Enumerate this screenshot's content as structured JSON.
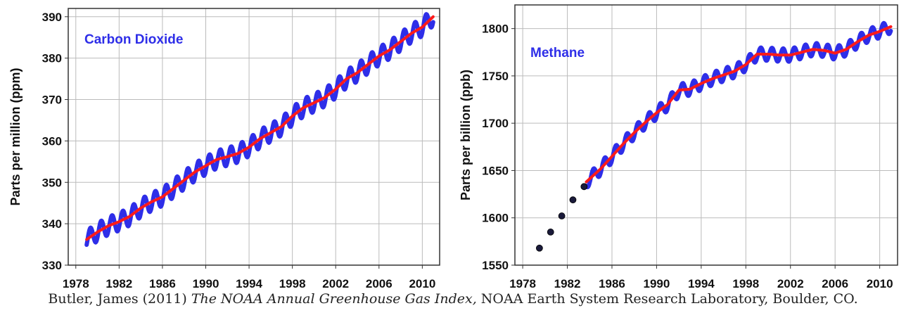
{
  "caption": {
    "author": "Butler, James (2011)",
    "title": "The NOAA Annual Greenhouse Gas Index,",
    "publisher": "NOAA Earth System Research Laboratory, Boulder, CO."
  },
  "colors": {
    "monthly": "#2e2ee8",
    "trend": "#ff1a1a",
    "early_points": "#1a1a3a",
    "grid": "#bbbbbb"
  },
  "chart_data": [
    {
      "type": "line",
      "title": "Carbon Dioxide",
      "xlabel": "",
      "ylabel": "Parts per million (ppm)",
      "xlim": [
        1977.3,
        2011.6
      ],
      "ylim": [
        330,
        392
      ],
      "x_ticks": [
        1978,
        1982,
        1986,
        1990,
        1994,
        1998,
        2002,
        2006,
        2010
      ],
      "y_ticks": [
        330,
        340,
        350,
        360,
        370,
        380,
        390
      ],
      "grid": true,
      "seasonal_amplitude": 2.2,
      "series": [
        {
          "role": "trend",
          "x": [
            1979,
            1980,
            1981,
            1982,
            1983,
            1984,
            1985,
            1986,
            1987,
            1988,
            1989,
            1990,
            1991,
            1992,
            1993,
            1994,
            1995,
            1996,
            1997,
            1998,
            1999,
            2000,
            2001,
            2002,
            2003,
            2004,
            2005,
            2006,
            2007,
            2008,
            2009,
            2010,
            2011
          ],
          "values": [
            336.2,
            338.0,
            339.5,
            340.5,
            341.8,
            343.8,
            345.3,
            346.5,
            348.5,
            350.5,
            352.5,
            354.0,
            355.5,
            356.2,
            357.0,
            358.5,
            360.5,
            362.0,
            363.5,
            366.0,
            368.0,
            369.2,
            370.5,
            372.5,
            375.0,
            376.5,
            378.5,
            380.5,
            382.0,
            384.0,
            386.0,
            387.5,
            390.0
          ]
        }
      ]
    },
    {
      "type": "line",
      "title": "Methane",
      "xlabel": "",
      "ylabel": "Parts per billion (ppb)",
      "xlim": [
        1977.3,
        2011.6
      ],
      "ylim": [
        1550,
        1825
      ],
      "x_ticks": [
        1978,
        1982,
        1986,
        1990,
        1994,
        1998,
        2002,
        2006,
        2010
      ],
      "y_ticks": [
        1550,
        1600,
        1650,
        1700,
        1750,
        1800
      ],
      "grid": true,
      "seasonal_amplitude": 7,
      "series": [
        {
          "role": "early_points",
          "x": [
            1979.5,
            1980.5,
            1981.5,
            1982.5,
            1983.5
          ],
          "values": [
            1568,
            1585,
            1602,
            1619,
            1633
          ]
        },
        {
          "role": "trend",
          "x": [
            1983.7,
            1985,
            1986,
            1987,
            1988,
            1989,
            1990,
            1991,
            1992,
            1993,
            1994,
            1995,
            1996,
            1997,
            1998,
            1999,
            2000,
            2001,
            2002,
            2003,
            2004,
            2005,
            2006,
            2007,
            2008,
            2009,
            2010,
            2011
          ],
          "values": [
            1638,
            1652,
            1665,
            1678,
            1690,
            1701,
            1711,
            1720,
            1735,
            1736,
            1742,
            1747,
            1751,
            1755,
            1762,
            1773,
            1773,
            1772,
            1772,
            1775,
            1778,
            1777,
            1774,
            1778,
            1786,
            1793,
            1797,
            1802
          ]
        }
      ]
    }
  ]
}
